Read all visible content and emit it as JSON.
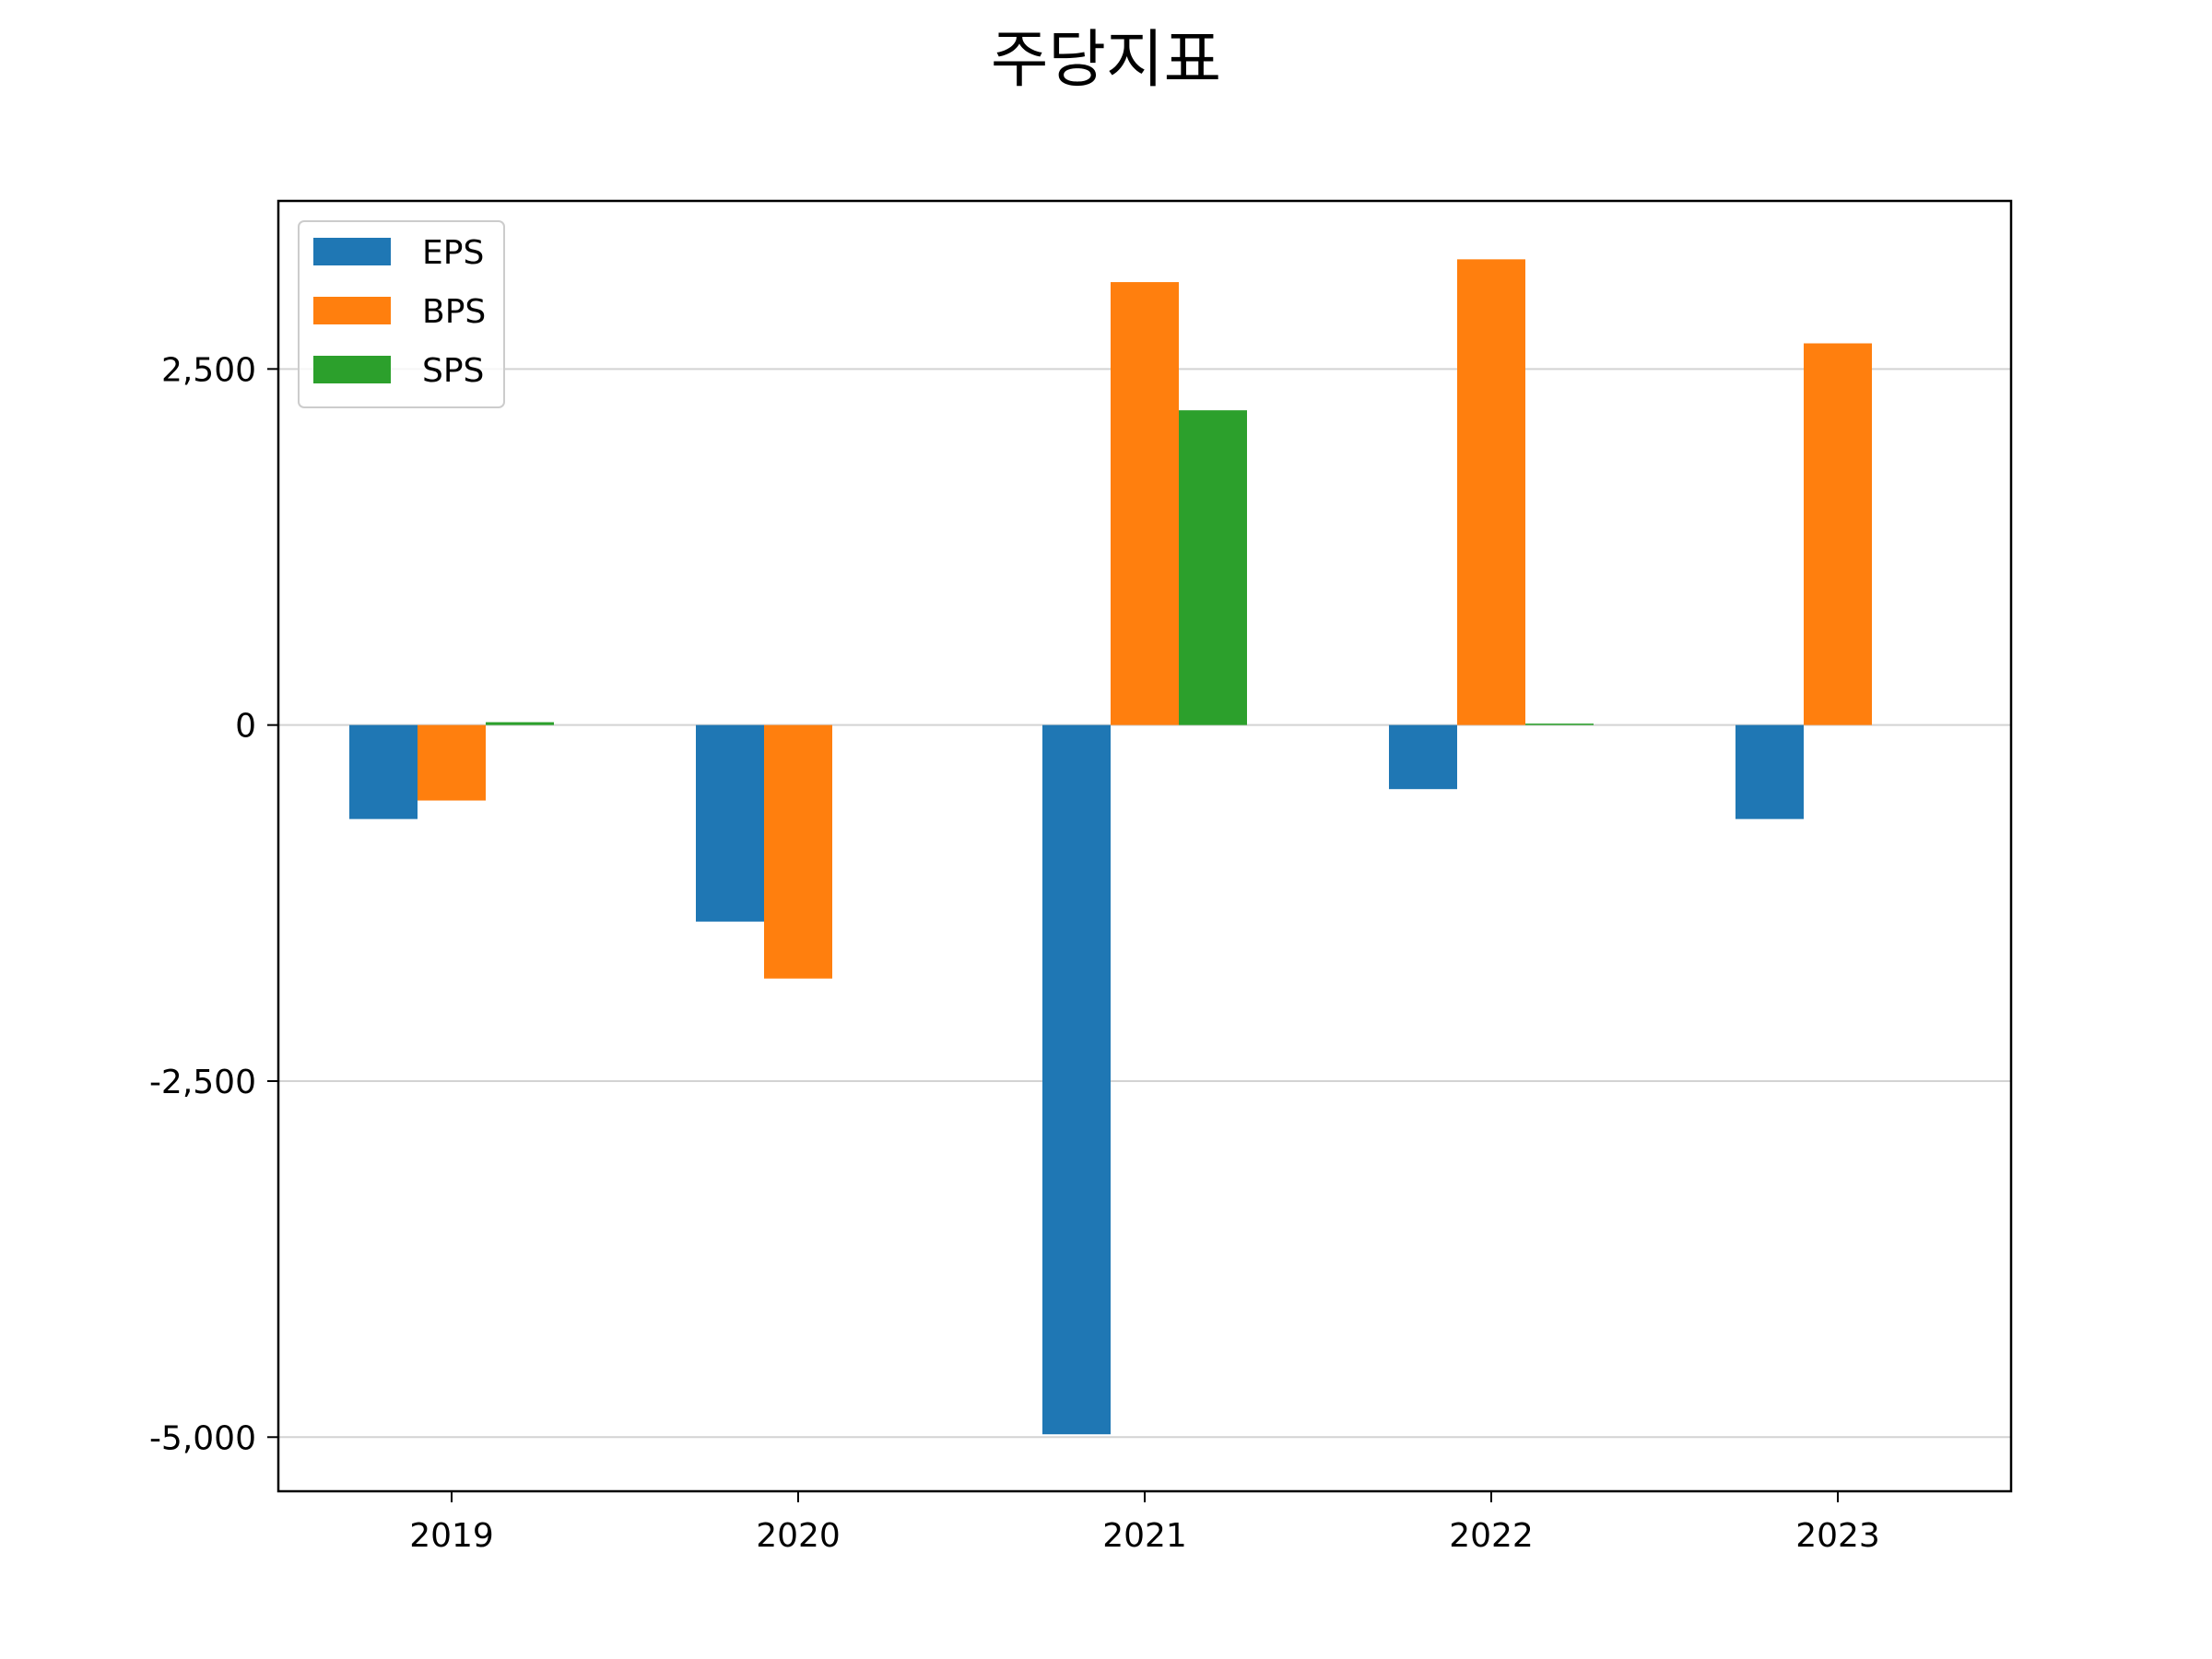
{
  "chart_data": {
    "type": "bar",
    "title": "주당지표",
    "xlabel": "",
    "ylabel": "",
    "categories": [
      "2019",
      "2020",
      "2021",
      "2022",
      "2023"
    ],
    "series": [
      {
        "name": "EPS",
        "color": "#1f77b4",
        "values": [
          -660,
          -1380,
          -4980,
          -450,
          -660
        ]
      },
      {
        "name": "BPS",
        "color": "#ff7f0e",
        "values": [
          -530,
          -1780,
          3110,
          3270,
          2680
        ]
      },
      {
        "name": "SPS",
        "color": "#2ca02c",
        "values": [
          20,
          0,
          2210,
          10,
          0
        ]
      }
    ],
    "ylim": [
      -5380,
      3680
    ],
    "yticks": [
      {
        "value": -5000,
        "label": "-5,000"
      },
      {
        "value": -2500,
        "label": "-2,500"
      },
      {
        "value": 0,
        "label": "0"
      },
      {
        "value": 2500,
        "label": "2,500"
      }
    ],
    "grid": "y",
    "legend": "top-left"
  }
}
